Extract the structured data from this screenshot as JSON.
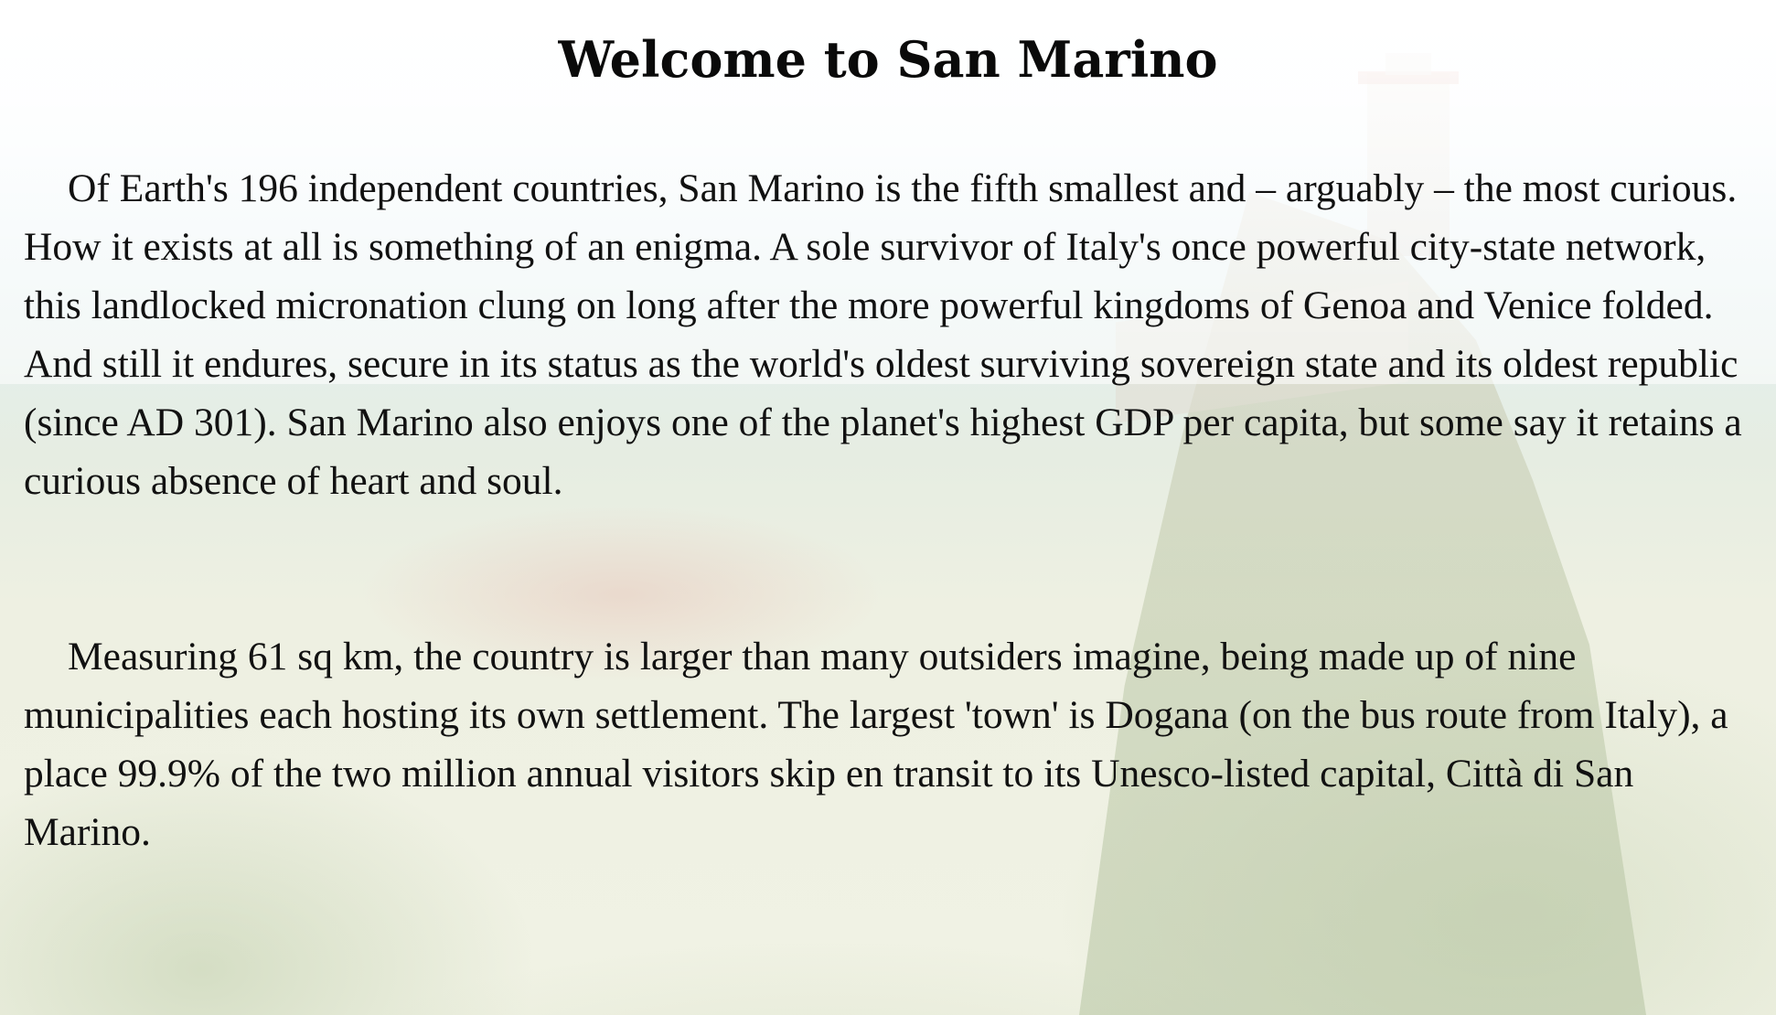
{
  "page": {
    "title": "Welcome to San Marino",
    "paragraphs": [
      "Of Earth's 196 independent countries, San Marino is the fifth smallest and – arguably – the most curious. How it exists at all is something of an enigma. A sole survivor of Italy's once powerful city-state network, this landlocked micronation clung on long after the more powerful kingdoms of Genoa and Venice folded. And still it endures, secure in its status as the world's oldest surviving sovereign state and its oldest republic (since AD 301). San Marino also enjoys one of the planet's highest GDP per capita, but some say it retains a curious absence of heart and soul.",
      "Measuring 61 sq km, the country is larger than many outsiders imagine, being made up of nine municipalities each hosting its own settlement. The largest 'town' is Dogana (on the bus route from Italy), a place 99.9% of the two million annual visitors skip en transit to its Unesco-listed capital, Città di San Marino."
    ]
  }
}
